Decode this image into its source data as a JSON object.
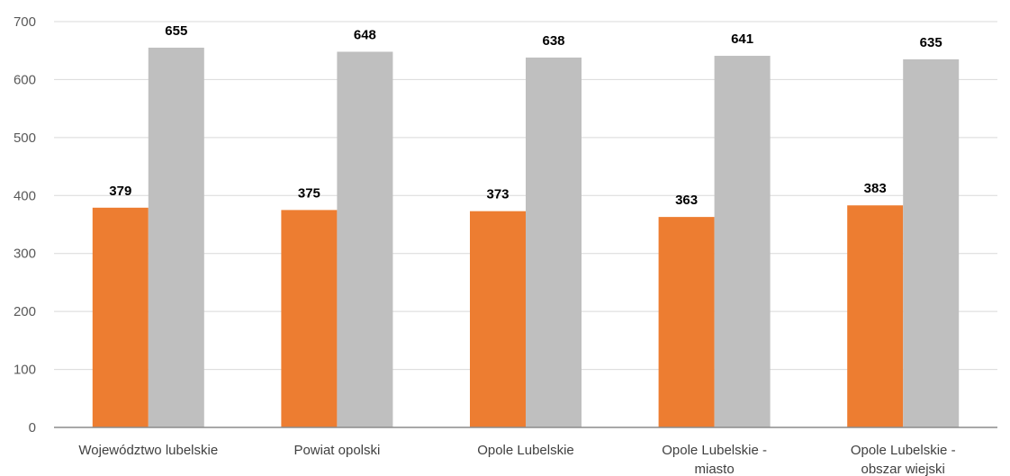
{
  "chart_data": {
    "type": "bar",
    "categories": [
      [
        "Województwo lubelskie"
      ],
      [
        "Powiat opolski"
      ],
      [
        "Opole Lubelskie"
      ],
      [
        "Opole Lubelskie -",
        "miasto"
      ],
      [
        "Opole Lubelskie -",
        "obszar wiejski"
      ]
    ],
    "series": [
      {
        "values": [
          379,
          375,
          373,
          363,
          383
        ],
        "color": "#ED7D31"
      },
      {
        "values": [
          655,
          648,
          638,
          641,
          635
        ],
        "color": "#BFBFBF"
      }
    ],
    "ylim": [
      0,
      700
    ],
    "yticks": [
      0,
      100,
      200,
      300,
      400,
      500,
      600,
      700
    ],
    "grid": true,
    "title": "",
    "xlabel": "",
    "ylabel": ""
  }
}
